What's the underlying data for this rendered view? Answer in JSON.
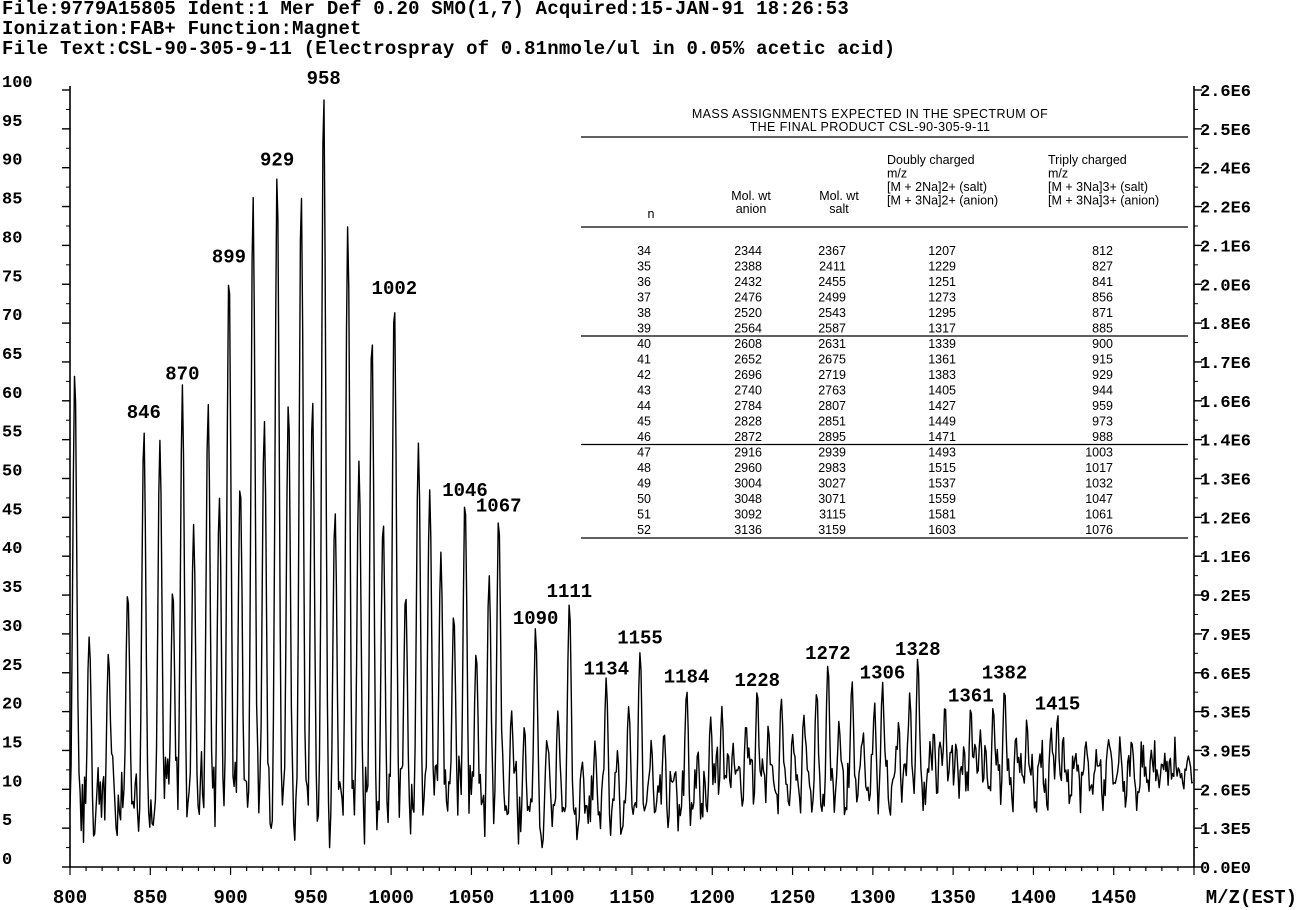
{
  "header": {
    "line1": "File:9779A15805 Ident:1 Mer Def 0.20 SMO(1,7) Acquired:15-JAN-91 18:26:53",
    "line2": "Ionization:FAB+ Function:Magnet",
    "line3": "File Text:CSL-90-305-9-11 (Electrospray of 0.81nmole/ul in 0.05% acetic acid)"
  },
  "chart_data": {
    "type": "line",
    "xlabel": "M/Z(EST)",
    "x_ticks": [
      "800",
      "850",
      "900",
      "950",
      "1000",
      "1050",
      "1100",
      "1150",
      "1200",
      "1250",
      "1300",
      "1350",
      "1400",
      "1450"
    ],
    "xlim": [
      800,
      1500
    ],
    "ylim": [
      0,
      100
    ],
    "y_ticks_left": [
      "0",
      "5",
      "10",
      "15",
      "20",
      "25",
      "30",
      "35",
      "40",
      "45",
      "50",
      "55",
      "60",
      "65",
      "70",
      "75",
      "80",
      "85",
      "90",
      "95",
      "100"
    ],
    "y_ticks_right": [
      "0.0E0",
      "1.3E5",
      "2.6E5",
      "3.9E5",
      "5.3E5",
      "6.6E5",
      "7.9E5",
      "9.2E5",
      "1.1E6",
      "1.2E6",
      "1.3E6",
      "1.4E6",
      "1.6E6",
      "1.7E6",
      "1.8E6",
      "2.0E6",
      "2.1E6",
      "2.2E6",
      "2.4E6",
      "2.5E6",
      "2.6E6"
    ],
    "peak_labels": [
      {
        "text": "846",
        "x": 846,
        "y": 57
      },
      {
        "text": "870",
        "x": 870,
        "y": 62
      },
      {
        "text": "899",
        "x": 899,
        "y": 77
      },
      {
        "text": "929",
        "x": 929,
        "y": 89.5
      },
      {
        "text": "958",
        "x": 958,
        "y": 100
      },
      {
        "text": "1002",
        "x": 1002,
        "y": 73
      },
      {
        "text": "1046",
        "x": 1046,
        "y": 47
      },
      {
        "text": "1067",
        "x": 1067,
        "y": 45
      },
      {
        "text": "1090",
        "x": 1090,
        "y": 30.5
      },
      {
        "text": "1111",
        "x": 1111,
        "y": 34
      },
      {
        "text": "1134",
        "x": 1134,
        "y": 24
      },
      {
        "text": "1155",
        "x": 1155,
        "y": 28
      },
      {
        "text": "1184",
        "x": 1184,
        "y": 23
      },
      {
        "text": "1228",
        "x": 1228,
        "y": 22.5
      },
      {
        "text": "1272",
        "x": 1272,
        "y": 26
      },
      {
        "text": "1306",
        "x": 1306,
        "y": 23.5
      },
      {
        "text": "1328",
        "x": 1328,
        "y": 26.5
      },
      {
        "text": "1361",
        "x": 1361,
        "y": 20.5
      },
      {
        "text": "1382",
        "x": 1382,
        "y": 23.5
      },
      {
        "text": "1415",
        "x": 1415,
        "y": 19.5
      }
    ],
    "major_peaks": [
      {
        "x": 803,
        "y": 64
      },
      {
        "x": 812,
        "y": 30
      },
      {
        "x": 824,
        "y": 28
      },
      {
        "x": 836,
        "y": 36
      },
      {
        "x": 846,
        "y": 57
      },
      {
        "x": 856,
        "y": 55
      },
      {
        "x": 864,
        "y": 36
      },
      {
        "x": 870,
        "y": 62
      },
      {
        "x": 877,
        "y": 44
      },
      {
        "x": 886,
        "y": 60
      },
      {
        "x": 893,
        "y": 48
      },
      {
        "x": 899,
        "y": 77
      },
      {
        "x": 906,
        "y": 50
      },
      {
        "x": 914,
        "y": 87
      },
      {
        "x": 921,
        "y": 58
      },
      {
        "x": 929,
        "y": 90
      },
      {
        "x": 936,
        "y": 60
      },
      {
        "x": 944,
        "y": 87
      },
      {
        "x": 951,
        "y": 60
      },
      {
        "x": 958,
        "y": 100
      },
      {
        "x": 965,
        "y": 46
      },
      {
        "x": 973,
        "y": 83
      },
      {
        "x": 980,
        "y": 52
      },
      {
        "x": 988,
        "y": 69
      },
      {
        "x": 995,
        "y": 45
      },
      {
        "x": 1002,
        "y": 73
      },
      {
        "x": 1009,
        "y": 35
      },
      {
        "x": 1017,
        "y": 55
      },
      {
        "x": 1024,
        "y": 49
      },
      {
        "x": 1031,
        "y": 40
      },
      {
        "x": 1039,
        "y": 33
      },
      {
        "x": 1046,
        "y": 47
      },
      {
        "x": 1053,
        "y": 28
      },
      {
        "x": 1061,
        "y": 37
      },
      {
        "x": 1067,
        "y": 45
      },
      {
        "x": 1075,
        "y": 20
      },
      {
        "x": 1083,
        "y": 18
      },
      {
        "x": 1090,
        "y": 30.5
      },
      {
        "x": 1097,
        "y": 17
      },
      {
        "x": 1104,
        "y": 20
      },
      {
        "x": 1111,
        "y": 34
      },
      {
        "x": 1119,
        "y": 14
      },
      {
        "x": 1127,
        "y": 16
      },
      {
        "x": 1134,
        "y": 24
      },
      {
        "x": 1141,
        "y": 15
      },
      {
        "x": 1148,
        "y": 21
      },
      {
        "x": 1155,
        "y": 28
      },
      {
        "x": 1162,
        "y": 16
      },
      {
        "x": 1170,
        "y": 18
      },
      {
        "x": 1177,
        "y": 12
      },
      {
        "x": 1184,
        "y": 23
      },
      {
        "x": 1191,
        "y": 15
      },
      {
        "x": 1199,
        "y": 19
      },
      {
        "x": 1206,
        "y": 21
      },
      {
        "x": 1213,
        "y": 16
      },
      {
        "x": 1221,
        "y": 19
      },
      {
        "x": 1228,
        "y": 22.5
      },
      {
        "x": 1235,
        "y": 18
      },
      {
        "x": 1243,
        "y": 22
      },
      {
        "x": 1250,
        "y": 17
      },
      {
        "x": 1257,
        "y": 20
      },
      {
        "x": 1265,
        "y": 23
      },
      {
        "x": 1272,
        "y": 26
      },
      {
        "x": 1279,
        "y": 19
      },
      {
        "x": 1287,
        "y": 24
      },
      {
        "x": 1294,
        "y": 17
      },
      {
        "x": 1301,
        "y": 21
      },
      {
        "x": 1306,
        "y": 23.5
      },
      {
        "x": 1316,
        "y": 19
      },
      {
        "x": 1323,
        "y": 22
      },
      {
        "x": 1328,
        "y": 26.5
      },
      {
        "x": 1338,
        "y": 18
      },
      {
        "x": 1345,
        "y": 21
      },
      {
        "x": 1352,
        "y": 16
      },
      {
        "x": 1361,
        "y": 20.5
      },
      {
        "x": 1367,
        "y": 18
      },
      {
        "x": 1375,
        "y": 21
      },
      {
        "x": 1382,
        "y": 23.5
      },
      {
        "x": 1389,
        "y": 17
      },
      {
        "x": 1396,
        "y": 19
      },
      {
        "x": 1404,
        "y": 15
      },
      {
        "x": 1411,
        "y": 18
      },
      {
        "x": 1415,
        "y": 19.5
      },
      {
        "x": 1426,
        "y": 14
      },
      {
        "x": 1433,
        "y": 16
      },
      {
        "x": 1440,
        "y": 13
      },
      {
        "x": 1448,
        "y": 15
      },
      {
        "x": 1455,
        "y": 12
      },
      {
        "x": 1462,
        "y": 14
      },
      {
        "x": 1470,
        "y": 11
      },
      {
        "x": 1477,
        "y": 13
      },
      {
        "x": 1485,
        "y": 14
      },
      {
        "x": 1492,
        "y": 12
      },
      {
        "x": 1499,
        "y": 11
      }
    ]
  },
  "table": {
    "title_line1": "MASS ASSIGNMENTS EXPECTED IN THE SPECTRUM OF",
    "title_line2": "THE FINAL PRODUCT CSL-90-305-9-11",
    "headers": {
      "n": "n",
      "anion_l1": "Mol. wt",
      "anion_l2": "anion",
      "salt_l1": "Mol. wt",
      "salt_l2": "salt",
      "dc_l1": "Doubly charged",
      "dc_l2": "m/z",
      "dc_l3": "[M + 2Na]2+ (salt)",
      "dc_l4": "[M + 3Na]2+ (anion)",
      "tc_l1": "Triply charged",
      "tc_l2": "m/z",
      "tc_l3": "[M + 3Na]3+ (salt)",
      "tc_l4": "[M + 3Na]3+ (anion)"
    },
    "rows": [
      [
        "34",
        "2344",
        "2367",
        "1207",
        "812"
      ],
      [
        "35",
        "2388",
        "2411",
        "1229",
        "827"
      ],
      [
        "36",
        "2432",
        "2455",
        "1251",
        "841"
      ],
      [
        "37",
        "2476",
        "2499",
        "1273",
        "856"
      ],
      [
        "38",
        "2520",
        "2543",
        "1295",
        "871"
      ],
      [
        "39",
        "2564",
        "2587",
        "1317",
        "885"
      ],
      [
        "40",
        "2608",
        "2631",
        "1339",
        "900"
      ],
      [
        "41",
        "2652",
        "2675",
        "1361",
        "915"
      ],
      [
        "42",
        "2696",
        "2719",
        "1383",
        "929"
      ],
      [
        "43",
        "2740",
        "2763",
        "1405",
        "944"
      ],
      [
        "44",
        "2784",
        "2807",
        "1427",
        "959"
      ],
      [
        "45",
        "2828",
        "2851",
        "1449",
        "973"
      ],
      [
        "46",
        "2872",
        "2895",
        "1471",
        "988"
      ],
      [
        "47",
        "2916",
        "2939",
        "1493",
        "1003"
      ],
      [
        "48",
        "2960",
        "2983",
        "1515",
        "1017"
      ],
      [
        "49",
        "3004",
        "3027",
        "1537",
        "1032"
      ],
      [
        "50",
        "3048",
        "3071",
        "1559",
        "1047"
      ],
      [
        "51",
        "3092",
        "3115",
        "1581",
        "1061"
      ],
      [
        "52",
        "3136",
        "3159",
        "1603",
        "1076"
      ]
    ]
  }
}
